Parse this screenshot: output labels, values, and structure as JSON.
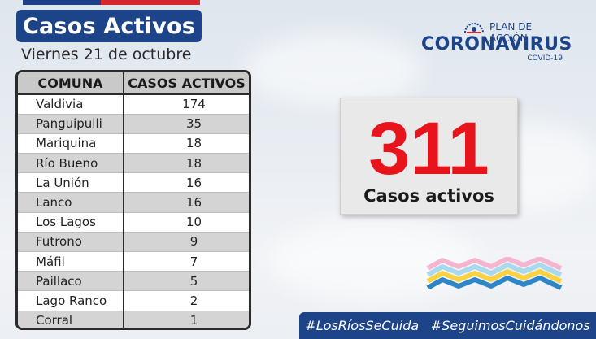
{
  "header": {
    "title": "Casos Activos",
    "date": "Viernes 21 de octubre"
  },
  "table": {
    "headers": [
      "COMUNA",
      "CASOS ACTIVOS"
    ],
    "rows": [
      {
        "comuna": "Valdivia",
        "casos": "174"
      },
      {
        "comuna": "Panguipulli",
        "casos": "35"
      },
      {
        "comuna": "Mariquina",
        "casos": "18"
      },
      {
        "comuna": "Río Bueno",
        "casos": "18"
      },
      {
        "comuna": "La Unión",
        "casos": "16"
      },
      {
        "comuna": "Lanco",
        "casos": "16"
      },
      {
        "comuna": "Los Lagos",
        "casos": "10"
      },
      {
        "comuna": "Futrono",
        "casos": "9"
      },
      {
        "comuna": "Máfil",
        "casos": "7"
      },
      {
        "comuna": "Paillaco",
        "casos": "5"
      },
      {
        "comuna": "Lago Ranco",
        "casos": "2"
      },
      {
        "comuna": "Corral",
        "casos": "1"
      }
    ]
  },
  "logo": {
    "plan": "PLAN DE ACCIÓN",
    "name": "CORONAVIRUS",
    "sub": "COVID-19"
  },
  "total": {
    "value": "311",
    "label": "Casos activos"
  },
  "hashtags": [
    "#LosRíosSeCuida",
    "#SeguimosCuidándonos"
  ],
  "colors": {
    "brand_blue": "#1d4488",
    "total_red": "#e8141b",
    "flag_red": "#d7262c"
  }
}
